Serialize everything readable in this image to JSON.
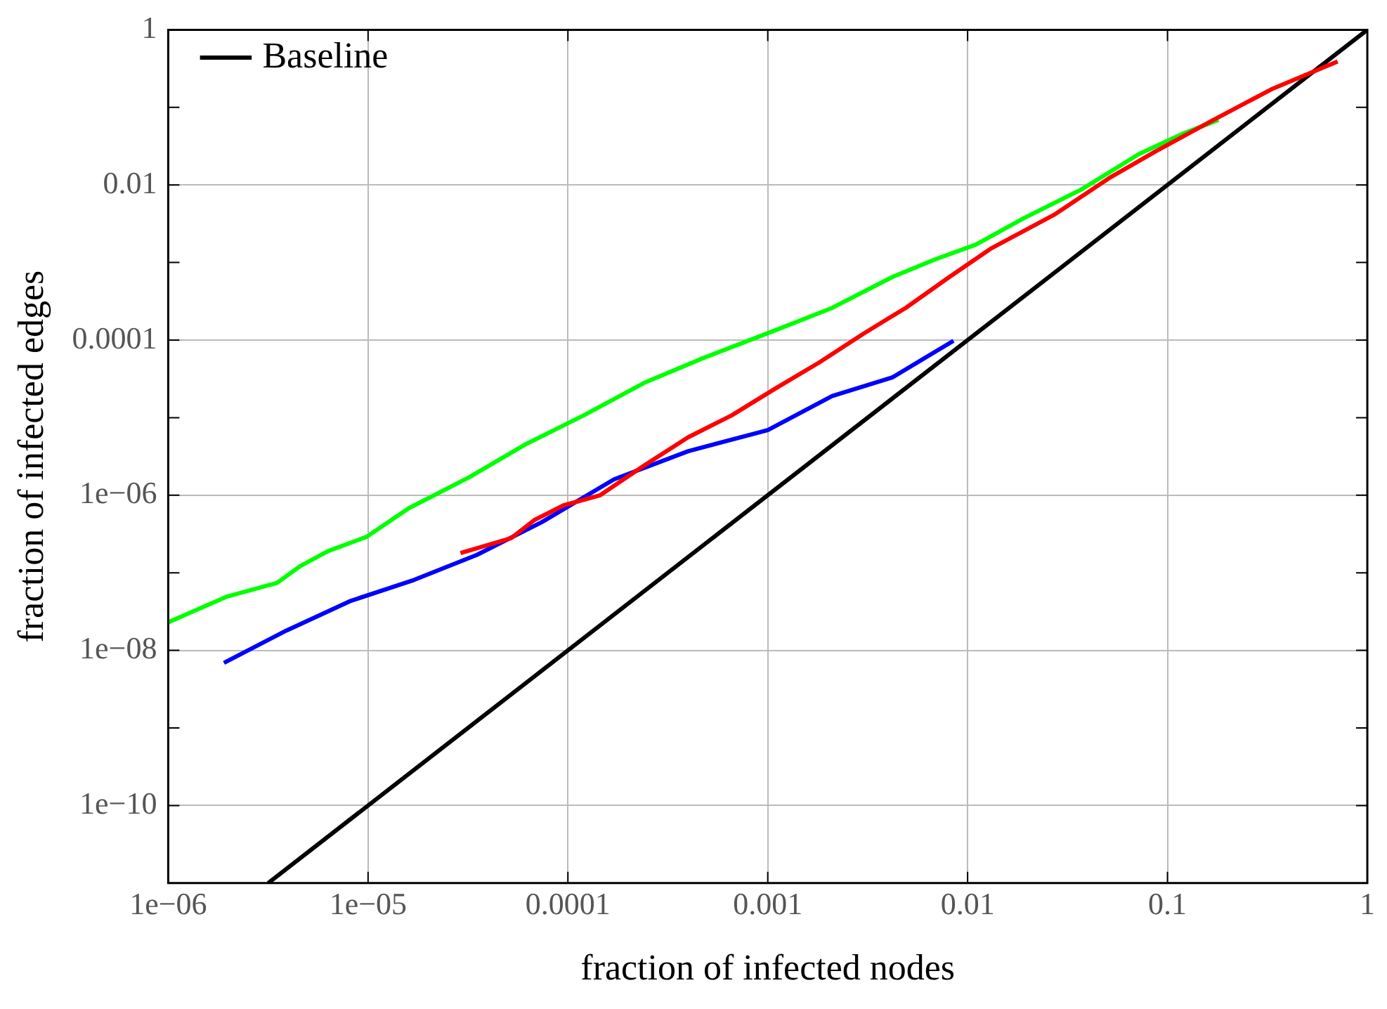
{
  "chart_data": {
    "type": "line",
    "xlabel": "fraction of infected nodes",
    "ylabel": "fraction of infected edges",
    "log": "xy",
    "grid": true,
    "legend": "top left",
    "line_style": "solid",
    "xlim": [
      1e-06,
      1
    ],
    "ylim": [
      1e-11,
      1
    ],
    "xticks": [
      {
        "value": 1e-06,
        "label": "1e−06"
      },
      {
        "value": 1e-05,
        "label": "1e−05"
      },
      0.0001,
      0.001,
      0.01,
      0.1,
      1
    ],
    "yticks": [
      1,
      {
        "value": 0.1,
        "label": null
      },
      0.01,
      {
        "value": 0.001,
        "label": null
      },
      0.0001,
      {
        "value": 1e-05,
        "label": null
      },
      {
        "value": 1e-06,
        "label": "1e−06"
      },
      {
        "value": 1e-07,
        "label": null
      },
      {
        "value": 1e-08,
        "label": "1e−08"
      },
      {
        "value": 1e-09,
        "label": null
      },
      {
        "value": 1e-10,
        "label": "1e−10"
      }
    ],
    "series": [
      {
        "color": "#ff0000",
        "x": [
          2.9e-05,
          5.2e-05,
          6.8e-05,
          9.5e-05,
          0.000145,
          0.00024,
          0.0004,
          0.00066,
          0.0011,
          0.0018,
          0.003,
          0.0049,
          0.0081,
          0.013,
          0.027,
          0.052,
          0.087,
          0.17,
          0.33,
          0.71
        ],
        "values": [
          1.8e-07,
          2.8e-07,
          4.8e-07,
          7.4e-07,
          1e-06,
          2.4e-06,
          5.6e-06,
          1.07e-05,
          2.4e-05,
          5.1e-05,
          0.00012,
          0.00026,
          0.00065,
          0.0015,
          0.0041,
          0.0126,
          0.027,
          0.069,
          0.17,
          0.39
        ]
      },
      {
        "color": "#0000ff",
        "x": [
          1.9e-06,
          3.9e-06,
          8.1e-06,
          1.7e-05,
          3.5e-05,
          7.4e-05,
          0.00017,
          0.0004,
          0.001,
          0.0021,
          0.0042,
          0.0085
        ],
        "values": [
          6.9e-09,
          1.8e-08,
          4.3e-08,
          8.1e-08,
          1.7e-07,
          4.5e-07,
          1.6e-06,
          3.7e-06,
          6.9e-06,
          1.9e-05,
          3.3e-05,
          9.8e-05
        ]
      },
      {
        "color": "#00ff00",
        "x": [
          1e-06,
          1.95e-06,
          3.5e-06,
          4.6e-06,
          6.3e-06,
          9.8e-06,
          1.6e-05,
          3.2e-05,
          6.2e-05,
          0.00012,
          0.00024,
          0.00047,
          0.0011,
          0.0021,
          0.0042,
          0.0069,
          0.011,
          0.019,
          0.037,
          0.072,
          0.12,
          0.18
        ],
        "values": [
          2.3e-08,
          4.9e-08,
          7.4e-08,
          1.23e-07,
          1.9e-07,
          2.9e-07,
          6.8e-07,
          1.7e-06,
          4.6e-06,
          1.07e-05,
          2.8e-05,
          5.8e-05,
          0.000135,
          0.00026,
          0.00065,
          0.0011,
          0.0017,
          0.0037,
          0.0087,
          0.025,
          0.046,
          0.069
        ]
      },
      {
        "name": "Baseline",
        "color": "#000000",
        "x": [
          3.1623e-06,
          1
        ],
        "values": [
          1e-11,
          1
        ]
      }
    ]
  }
}
